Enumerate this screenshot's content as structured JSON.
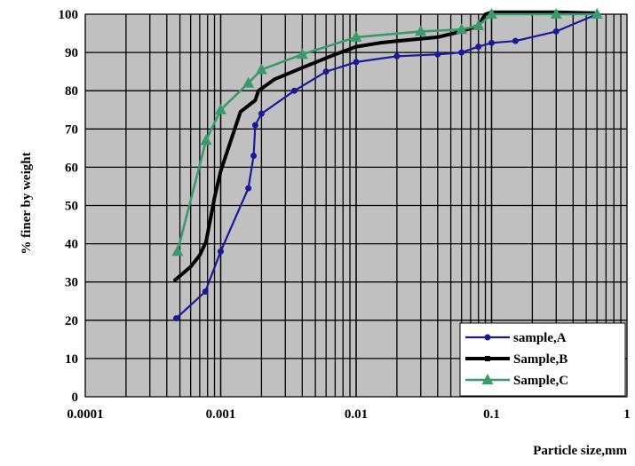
{
  "chart_data": {
    "type": "line",
    "title": "",
    "xlabel": "Particle size,mm",
    "ylabel": "% finer by weight",
    "xscale": "log",
    "xlim": [
      0.0001,
      1
    ],
    "ylim": [
      0,
      100
    ],
    "x_tick_labels": [
      "0.0001",
      "0.001",
      "0.01",
      "0.1",
      "1"
    ],
    "y_tick_labels": [
      "0",
      "10",
      "20",
      "30",
      "40",
      "50",
      "60",
      "70",
      "80",
      "90",
      "100"
    ],
    "grid": true,
    "legend_position": "bottom-right",
    "series": [
      {
        "name": "sample,A",
        "color": "#1a1a99",
        "marker": "circle",
        "points": [
          [
            0.00047,
            20.5
          ],
          [
            0.00077,
            27.5
          ],
          [
            0.001,
            38
          ],
          [
            0.0016,
            54.5
          ],
          [
            0.00175,
            63
          ],
          [
            0.0018,
            71
          ],
          [
            0.002,
            74
          ],
          [
            0.0035,
            80
          ],
          [
            0.006,
            85
          ],
          [
            0.01,
            87.5
          ],
          [
            0.02,
            89
          ],
          [
            0.04,
            89.5
          ],
          [
            0.06,
            90
          ],
          [
            0.08,
            91.5
          ],
          [
            0.1,
            92.5
          ],
          [
            0.15,
            93
          ],
          [
            0.3,
            95.5
          ],
          [
            0.6,
            100
          ]
        ]
      },
      {
        "name": "Sample,B",
        "color": "#000000",
        "marker": "square",
        "points": [
          [
            0.00046,
            30.5
          ],
          [
            0.0006,
            34
          ],
          [
            0.0007,
            37
          ],
          [
            0.00078,
            40.5
          ],
          [
            0.0009,
            52
          ],
          [
            0.001,
            59
          ],
          [
            0.0014,
            74.5
          ],
          [
            0.0018,
            77.5
          ],
          [
            0.0019,
            80
          ],
          [
            0.0025,
            83
          ],
          [
            0.004,
            86
          ],
          [
            0.007,
            89.5
          ],
          [
            0.01,
            91.5
          ],
          [
            0.015,
            92.5
          ],
          [
            0.02,
            93
          ],
          [
            0.04,
            94
          ],
          [
            0.06,
            95.5
          ],
          [
            0.08,
            97
          ],
          [
            0.09,
            100
          ],
          [
            0.1,
            100.5
          ],
          [
            0.3,
            100.5
          ],
          [
            0.6,
            100.3
          ]
        ]
      },
      {
        "name": "Sample,C",
        "color": "#3a9a6b",
        "marker": "triangle",
        "points": [
          [
            0.00048,
            38
          ],
          [
            0.00078,
            67
          ],
          [
            0.001,
            75
          ],
          [
            0.0016,
            82
          ],
          [
            0.002,
            85.5
          ],
          [
            0.004,
            89.5
          ],
          [
            0.01,
            94
          ],
          [
            0.03,
            95.5
          ],
          [
            0.06,
            96
          ],
          [
            0.08,
            97
          ],
          [
            0.1,
            100
          ],
          [
            0.3,
            100
          ],
          [
            0.6,
            100
          ]
        ]
      }
    ]
  }
}
